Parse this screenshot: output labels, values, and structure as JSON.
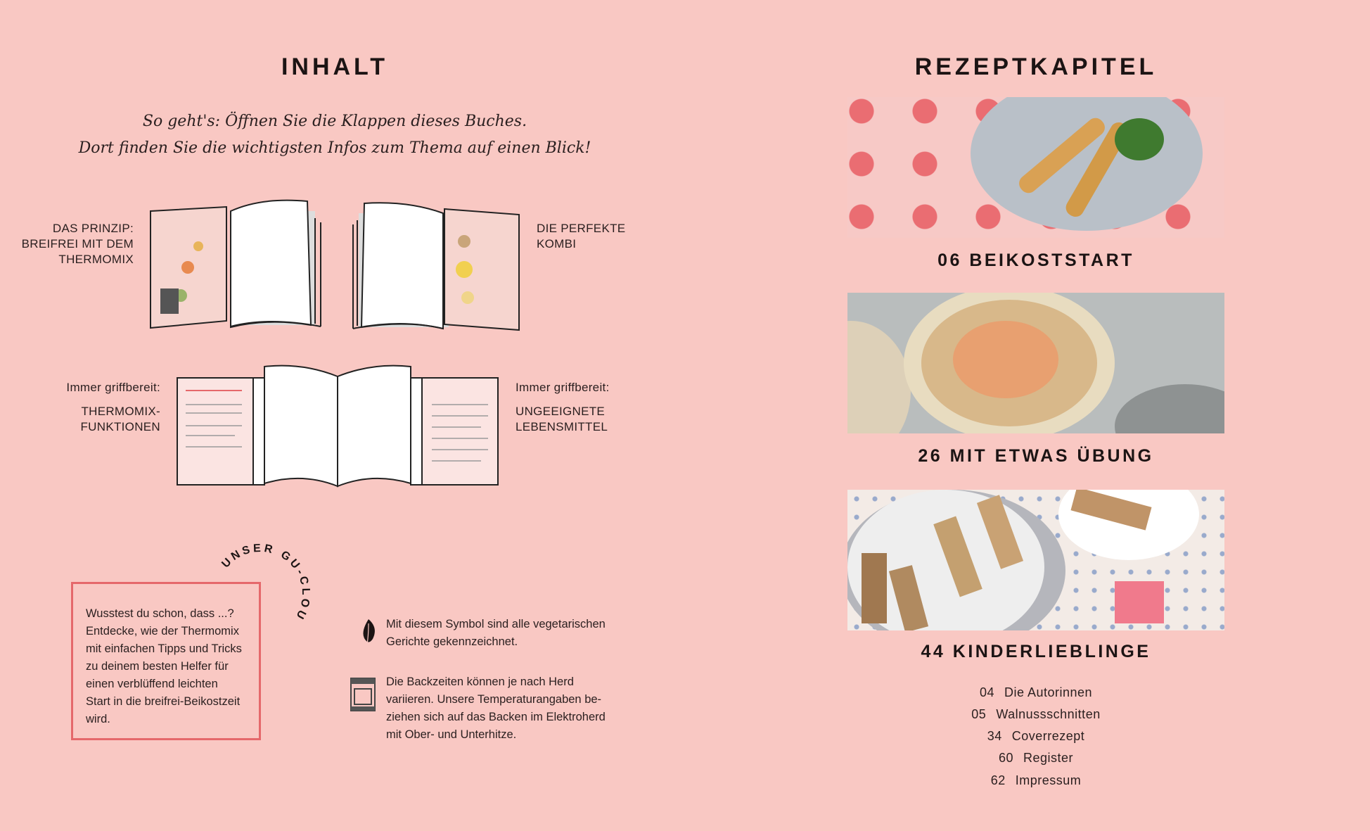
{
  "left": {
    "title": "INHALT",
    "intro": [
      "So geht's: Öffnen Sie die Klappen dieses Buches.",
      "Dort finden Sie die wichtigsten Infos zum Thema auf einen Blick!"
    ],
    "flaps": [
      {
        "lines": [
          "DAS PRINZIP:",
          "BREIFREI MIT DEM",
          "THERMOMIX"
        ]
      },
      {
        "lines": [
          "DIE PERFEKTE",
          "KOMBI"
        ]
      },
      {
        "kicker": "Immer griffbereit:",
        "lines": [
          "THERMOMIX-",
          "FUNKTIONEN"
        ]
      },
      {
        "kicker": "Immer griffbereit:",
        "lines": [
          "UNGEEIGNETE",
          "LEBENSMITTEL"
        ]
      }
    ],
    "clou": {
      "arc_label": "UNSER GU-CLOU",
      "text": [
        "Wusstest du schon, dass ...?",
        "Entdecke, wie der Thermomix",
        "mit einfachen Tipps und Tricks",
        "zu deinem besten Helfer für",
        "einen verblüffend leichten",
        "Start in die breifrei-Beikostzeit",
        "wird."
      ]
    },
    "notes": [
      {
        "icon": "leaf-icon",
        "lines": [
          "Mit diesem Symbol sind alle vegetarischen",
          "Gerichte gekennzeichnet."
        ]
      },
      {
        "icon": "oven-icon",
        "lines": [
          "Die Backzeiten können je nach Herd",
          "variieren. Unsere Temperaturangaben be-",
          "ziehen sich auf das Backen im Elektroherd",
          "mit Ober- und Unterhitze."
        ]
      }
    ]
  },
  "right": {
    "title": "REZEPTKAPITEL",
    "chapters": [
      {
        "label": "06 BEIKOSTSTART"
      },
      {
        "label": "26 MIT ETWAS ÜBUNG"
      },
      {
        "label": "44 KINDERLIEBLINGE"
      }
    ],
    "toc": [
      {
        "page": "04",
        "title": "Die Autorinnen"
      },
      {
        "page": "05",
        "title": "Walnussschnitten"
      },
      {
        "page": "34",
        "title": "Coverrezept"
      },
      {
        "page": "60",
        "title": "Register"
      },
      {
        "page": "62",
        "title": "Impressum"
      }
    ]
  },
  "colors": {
    "background": "#f9c8c3",
    "accent": "#e5686b",
    "text": "#1c1414"
  }
}
